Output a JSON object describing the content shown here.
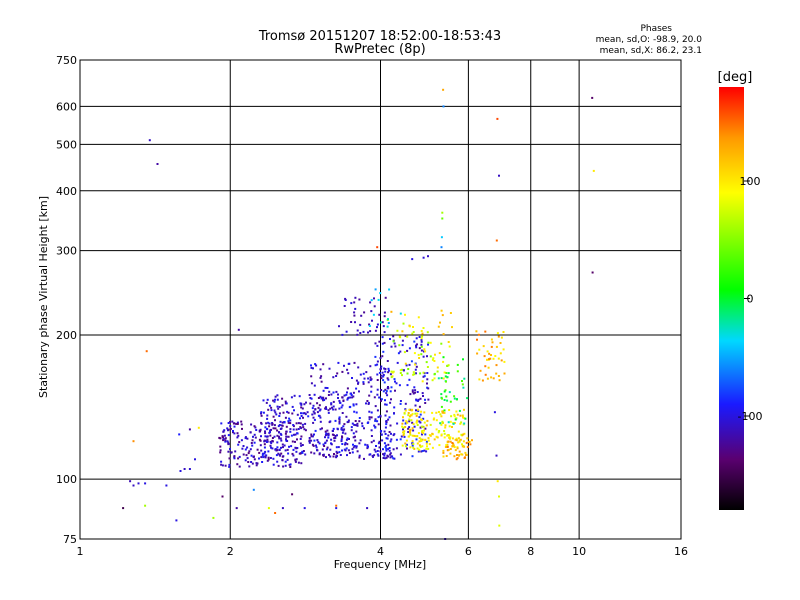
{
  "chart_data": {
    "type": "scatter",
    "title": "Tromsø 20151207 18:52:00-18:53:43",
    "subtitle": "RwPretec (8p)",
    "stats_title": "Phases",
    "stats_line1": "mean, sd,O: -98.9, 20.0",
    "stats_line2": "mean, sd,X:  86.2, 23.1",
    "xlabel": "Frequency [MHz]",
    "ylabel": "Stationary phase Virtual Height [km]",
    "x_scale": "log",
    "y_scale": "log",
    "xlim": [
      1,
      16
    ],
    "ylim": [
      75,
      750
    ],
    "x_ticks": [
      1,
      2,
      4,
      6,
      8,
      10,
      16
    ],
    "x_gridlines": [
      2,
      4,
      6,
      8,
      10
    ],
    "y_ticks": [
      75,
      100,
      200,
      300,
      400,
      500,
      600,
      750
    ],
    "y_gridlines": [
      100,
      200,
      300,
      400,
      500,
      600
    ],
    "grid": true,
    "colorbar": {
      "label": "[deg]",
      "range": [
        -180,
        180
      ],
      "ticks": [
        100,
        0,
        -100
      ]
    },
    "points": [
      [
        1.28,
        97,
        -110
      ],
      [
        1.31,
        98,
        -105
      ],
      [
        1.26,
        99,
        -115
      ],
      [
        1.35,
        98,
        -100
      ],
      [
        1.28,
        120,
        140
      ],
      [
        1.36,
        185,
        150
      ],
      [
        1.22,
        87,
        -150
      ],
      [
        1.35,
        88,
        60
      ],
      [
        1.38,
        510,
        -110
      ],
      [
        1.43,
        455,
        -120
      ],
      [
        1.49,
        97,
        -100
      ],
      [
        1.59,
        104,
        -100
      ],
      [
        1.62,
        105,
        -110
      ],
      [
        1.66,
        105,
        -105
      ],
      [
        1.7,
        110,
        -100
      ],
      [
        1.58,
        124,
        -90
      ],
      [
        1.66,
        127,
        -120
      ],
      [
        1.73,
        128,
        100
      ],
      [
        1.56,
        82,
        -100
      ],
      [
        1.85,
        83,
        60
      ],
      [
        2.08,
        205,
        -120
      ],
      [
        1.93,
        92,
        -140
      ],
      [
        2.06,
        87,
        -120
      ],
      [
        2.23,
        95,
        -60
      ],
      [
        2.39,
        87,
        80
      ],
      [
        2.46,
        85,
        150
      ],
      [
        2.55,
        87,
        -110
      ],
      [
        2.66,
        93,
        -140
      ],
      [
        2.82,
        87,
        -100
      ],
      [
        3.26,
        88,
        150
      ],
      [
        3.26,
        87,
        -100
      ],
      [
        3.76,
        87,
        -110
      ],
      [
        3.94,
        305,
        160
      ],
      [
        4.88,
        290,
        -105
      ],
      [
        4.98,
        292,
        -110
      ],
      [
        4.63,
        288,
        -100
      ],
      [
        5.32,
        360,
        60
      ],
      [
        5.32,
        350,
        40
      ],
      [
        5.31,
        320,
        -40
      ],
      [
        5.3,
        305,
        -60
      ],
      [
        5.35,
        600,
        -60
      ],
      [
        5.34,
        650,
        130
      ],
      [
        6.86,
        565,
        160
      ],
      [
        6.84,
        315,
        150
      ],
      [
        6.91,
        430,
        -110
      ],
      [
        10.62,
        625,
        -140
      ],
      [
        10.7,
        440,
        100
      ],
      [
        10.64,
        270,
        -140
      ],
      [
        6.91,
        92,
        80
      ],
      [
        6.87,
        99,
        100
      ],
      [
        6.92,
        80,
        80
      ],
      [
        5.39,
        75,
        -110
      ],
      [
        6.83,
        112,
        -110
      ],
      [
        6.78,
        138,
        -100
      ]
    ],
    "cluster_fields": [
      {
        "xmin": 1.9,
        "xmax": 2.8,
        "ymin": 106,
        "ymax": 132,
        "vmin": -135,
        "vmax": -90,
        "n": 230
      },
      {
        "xmin": 2.3,
        "xmax": 3.6,
        "ymin": 112,
        "ymax": 150,
        "vmin": -130,
        "vmax": -85,
        "n": 260
      },
      {
        "xmin": 2.9,
        "xmax": 4.2,
        "ymin": 110,
        "ymax": 175,
        "vmin": -130,
        "vmax": -85,
        "n": 240
      },
      {
        "xmin": 3.3,
        "xmax": 4.1,
        "ymin": 200,
        "ymax": 240,
        "vmin": -125,
        "vmax": -100,
        "n": 40
      },
      {
        "xmin": 3.9,
        "xmax": 5.0,
        "ymin": 110,
        "ymax": 200,
        "vmin": -125,
        "vmax": -80,
        "n": 200
      },
      {
        "xmin": 4.4,
        "xmax": 5.9,
        "ymin": 115,
        "ymax": 140,
        "vmin": 70,
        "vmax": 130,
        "n": 180
      },
      {
        "xmin": 4.2,
        "xmax": 5.6,
        "ymin": 160,
        "ymax": 195,
        "vmin": 40,
        "vmax": 110,
        "n": 55
      },
      {
        "xmin": 5.2,
        "xmax": 6.0,
        "ymin": 130,
        "ymax": 180,
        "vmin": -30,
        "vmax": 50,
        "n": 40
      },
      {
        "xmin": 6.2,
        "xmax": 7.1,
        "ymin": 160,
        "ymax": 205,
        "vmin": 90,
        "vmax": 150,
        "n": 45
      },
      {
        "xmin": 4.1,
        "xmax": 5.6,
        "ymin": 195,
        "ymax": 225,
        "vmin": 60,
        "vmax": 130,
        "n": 28
      },
      {
        "xmin": 3.8,
        "xmax": 4.4,
        "ymin": 205,
        "ymax": 250,
        "vmin": -60,
        "vmax": -10,
        "n": 12
      },
      {
        "xmin": 5.3,
        "xmax": 6.1,
        "ymin": 110,
        "ymax": 122,
        "vmin": 100,
        "vmax": 150,
        "n": 40
      }
    ]
  }
}
